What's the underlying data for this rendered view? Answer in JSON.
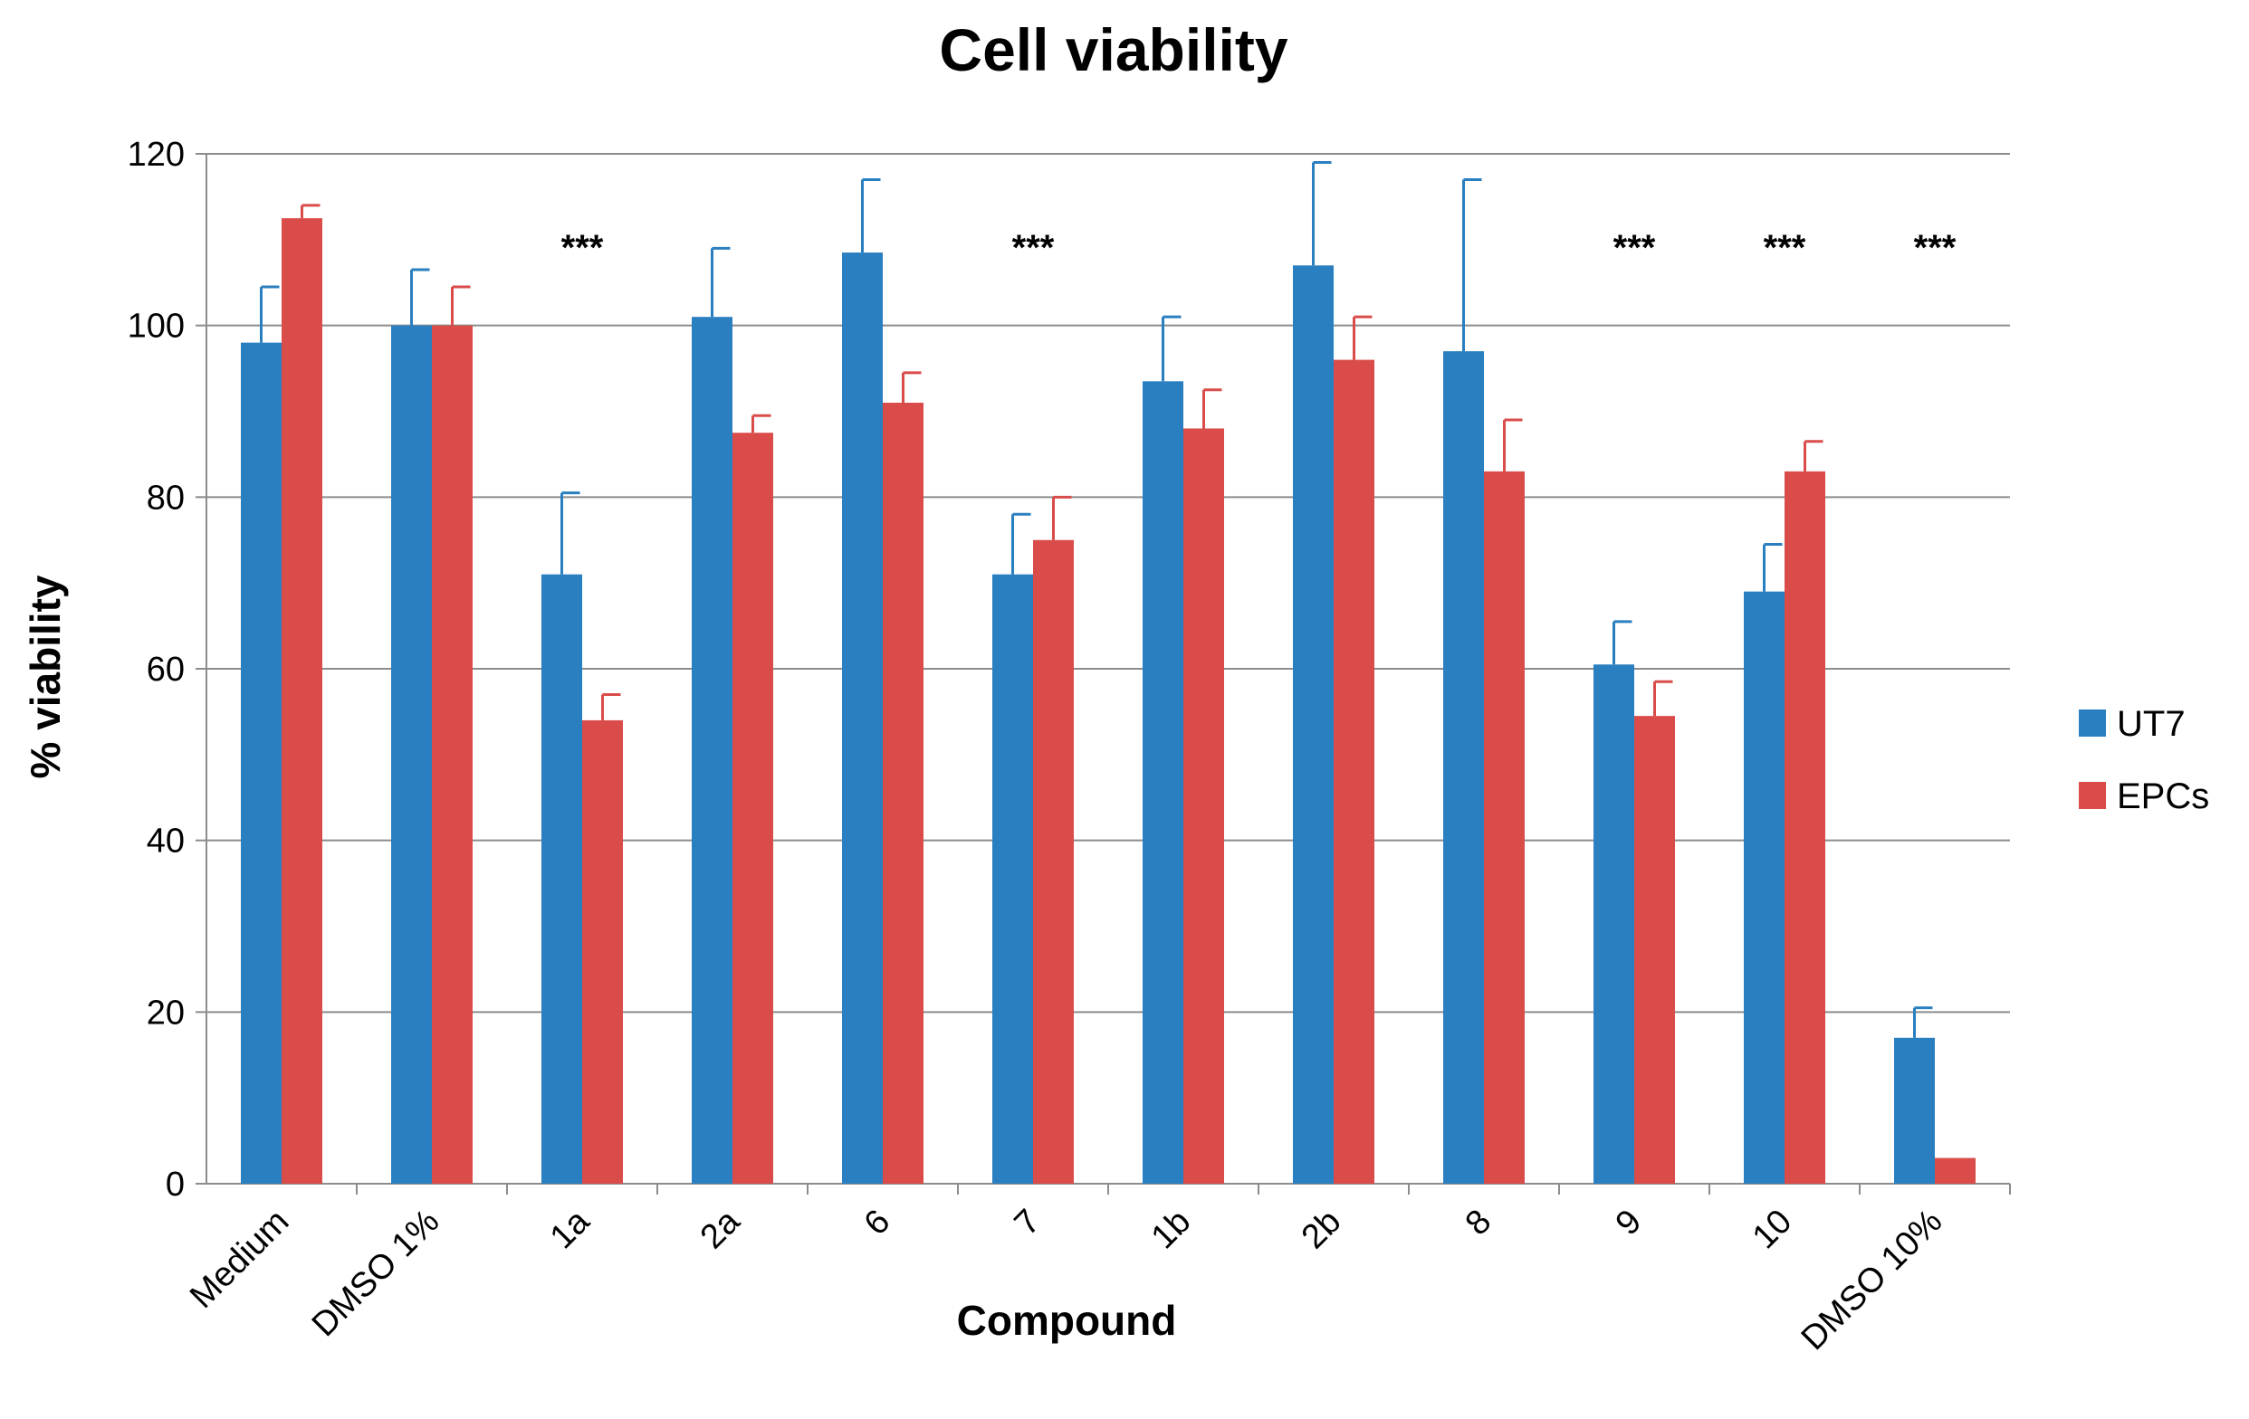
{
  "chart_data": {
    "type": "bar",
    "title": "Cell viability",
    "xlabel": "Compound",
    "ylabel": "% viability",
    "ylim": [
      0,
      120
    ],
    "yticks": [
      "0",
      "20",
      "40",
      "60",
      "80",
      "100",
      "120"
    ],
    "grid": true,
    "legend_position": "right",
    "categories": [
      "Medium",
      "DMSO 1%",
      "1a",
      "2a",
      "6",
      "7",
      "1b",
      "2b",
      "8",
      "9",
      "10",
      "DMSO 10%"
    ],
    "series": [
      {
        "name": "UT7",
        "color": "#2a7fc0",
        "values": [
          98,
          100,
          71,
          101,
          108.5,
          71,
          93.5,
          107,
          97,
          60.5,
          69,
          17
        ],
        "errors": [
          6.5,
          6.5,
          9.5,
          8,
          8.5,
          7,
          7.5,
          12,
          20,
          5,
          5.5,
          3.5
        ]
      },
      {
        "name": "EPCs",
        "color": "#d94c4a",
        "values": [
          112.5,
          100,
          54,
          87.5,
          91,
          75,
          88,
          96,
          83,
          54.5,
          83,
          3
        ],
        "errors": [
          1.5,
          4.5,
          3,
          2,
          3.5,
          5,
          4.5,
          5,
          6,
          4,
          3.5,
          0
        ]
      }
    ],
    "annotations": [
      {
        "category": "1a",
        "text": "***"
      },
      {
        "category": "7",
        "text": "***"
      },
      {
        "category": "9",
        "text": "***"
      },
      {
        "category": "10",
        "text": "***"
      },
      {
        "category": "DMSO 10%",
        "text": "***"
      }
    ]
  }
}
